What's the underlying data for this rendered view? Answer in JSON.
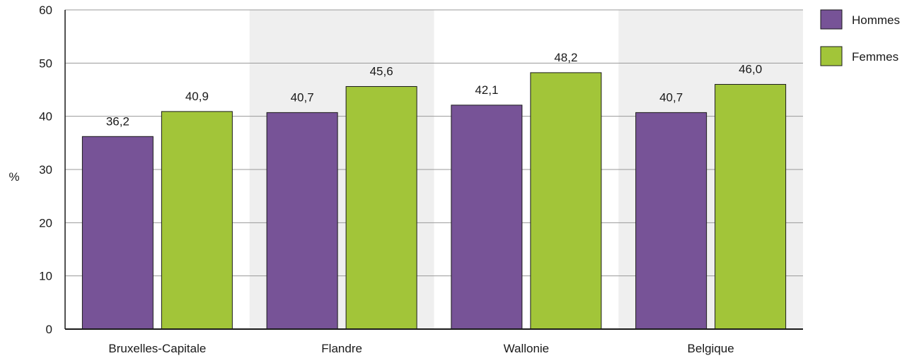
{
  "chart_data": {
    "type": "bar",
    "categories": [
      "Bruxelles-Capitale",
      "Flandre",
      "Wallonie",
      "Belgique"
    ],
    "series": [
      {
        "name": "Hommes",
        "values": [
          36.2,
          40.7,
          42.1,
          40.7
        ],
        "labels": [
          "36,2",
          "40,7",
          "42,1",
          "40,7"
        ],
        "color": "#775397"
      },
      {
        "name": "Femmes",
        "values": [
          40.9,
          45.6,
          48.2,
          46.0
        ],
        "labels": [
          "40,9",
          "45,6",
          "48,2",
          "46,0"
        ],
        "color": "#a2c539"
      }
    ],
    "title": "",
    "xlabel": "",
    "ylabel": "%",
    "ylim": [
      0,
      60
    ],
    "yticks": [
      0,
      10,
      20,
      30,
      40,
      50,
      60
    ],
    "grid": true,
    "alternating_band_color": "#efefef",
    "legend_position": "top-right"
  }
}
